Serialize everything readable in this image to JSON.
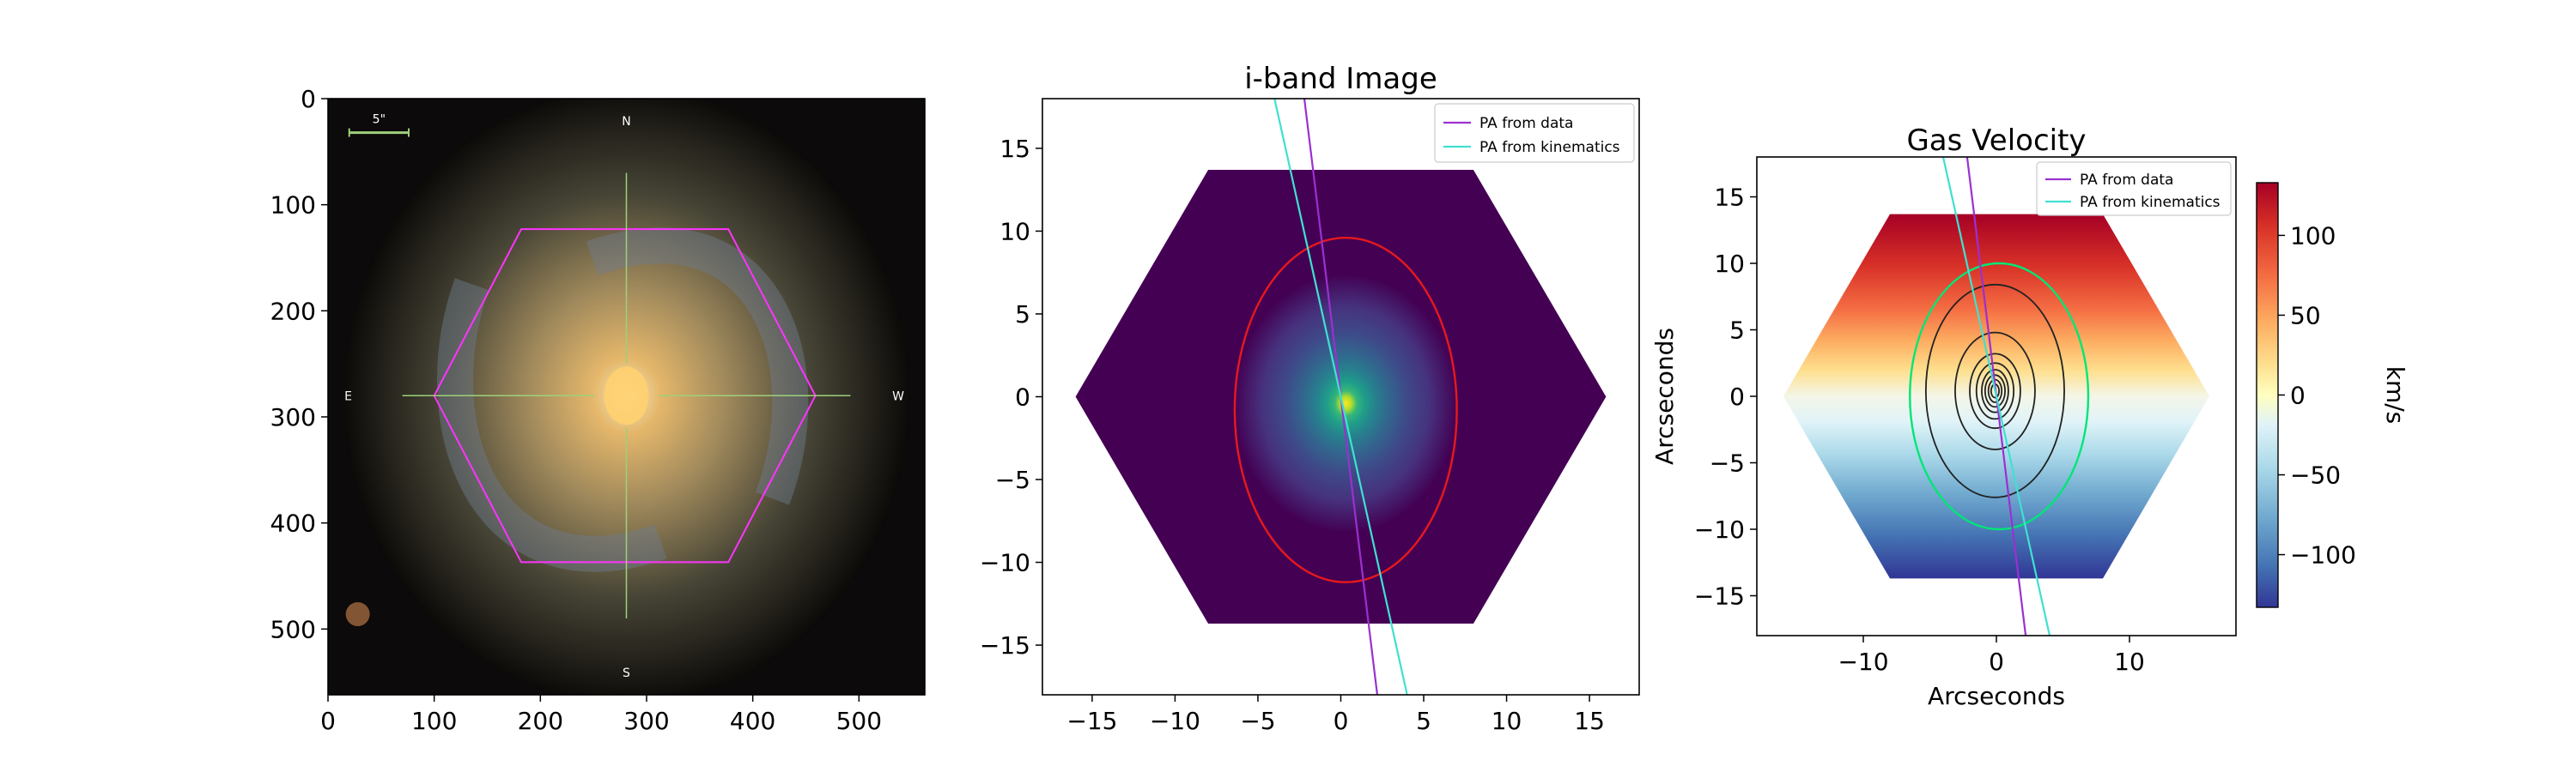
{
  "colors": {
    "hexagon": "#ff33ff",
    "crosshair": "#9ed07a",
    "pa_data": "#9b30d0",
    "pa_kinematics": "#40e0d0",
    "ellipse_iband": "#e8181c",
    "ellipse_gas": "#00e676",
    "contour": "#222222",
    "scalebar": "#9ed07a"
  },
  "chart_data": [
    {
      "type": "image",
      "panel": "SDSS color image",
      "x_ticks": [
        0,
        100,
        200,
        300,
        400,
        500
      ],
      "y_ticks": [
        0,
        100,
        200,
        300,
        400,
        500
      ],
      "xlim": [
        0,
        562
      ],
      "ylim": [
        562,
        0
      ],
      "compass": {
        "north": "N",
        "south": "S",
        "east": "E",
        "west": "W"
      },
      "scalebar_label": "5\"",
      "hexagon_vertices": [
        [
          182,
          123
        ],
        [
          377,
          123
        ],
        [
          459,
          280
        ],
        [
          377,
          437
        ],
        [
          182,
          437
        ],
        [
          100,
          280
        ]
      ],
      "center": [
        281,
        280
      ],
      "crosshair": {
        "x_range": [
          70,
          492
        ],
        "y_range": [
          70,
          490
        ],
        "gap": 30
      }
    },
    {
      "type": "heatmap",
      "title": "i-band Image",
      "colormap": "viridis",
      "x_ticks": [
        -15,
        -10,
        -5,
        0,
        5,
        10,
        15
      ],
      "y_ticks": [
        -15,
        -10,
        -5,
        0,
        5,
        10,
        15
      ],
      "xlim": [
        -18,
        18
      ],
      "ylim": [
        18,
        -18
      ],
      "footprint_hexagon": [
        [
          -8,
          -13.7
        ],
        [
          8,
          -13.7
        ],
        [
          16,
          0
        ],
        [
          8,
          13.7
        ],
        [
          -8,
          13.7
        ],
        [
          -16,
          0
        ]
      ],
      "peak": [
        0.3,
        -0.4
      ],
      "ellipse": {
        "center": [
          0.3,
          -0.8
        ],
        "semi_major": 10.4,
        "semi_minor": 6.7,
        "angle_deg": 0
      },
      "pa_lines": [
        {
          "name": "PA from data",
          "x_at_top": -2.2,
          "x_at_bottom": 2.2
        },
        {
          "name": "PA from kinematics",
          "x_at_top": -4.0,
          "x_at_bottom": 4.0
        }
      ],
      "legend": [
        "PA from data",
        "PA from kinematics"
      ],
      "legend_position": "top-right"
    },
    {
      "type": "heatmap",
      "title": "Gas Velocity",
      "xlabel": "Arcseconds",
      "ylabel": "Arcseconds",
      "colormap": "RdYlBu_r",
      "x_ticks": [
        -10,
        0,
        10
      ],
      "y_ticks": [
        15,
        10,
        5,
        0,
        -5,
        -10,
        -15
      ],
      "xlim": [
        -18,
        18
      ],
      "ylim": [
        -18,
        18
      ],
      "velocity_range": [
        -133,
        133
      ],
      "velocity_field": "red (+) at north, blue (-) at south",
      "footprint_hexagon": [
        [
          -8,
          13.7
        ],
        [
          8,
          13.7
        ],
        [
          16,
          0
        ],
        [
          8,
          -13.7
        ],
        [
          -8,
          -13.7
        ],
        [
          -16,
          0
        ]
      ],
      "ellipse": {
        "center": [
          0.2,
          0.0
        ],
        "semi_major": 10.0,
        "semi_minor": 6.7,
        "angle_deg": 0
      },
      "contours": [
        {
          "rx": 5.2,
          "ry": 8.0
        },
        {
          "rx": 3.0,
          "ry": 4.4
        },
        {
          "rx": 1.9,
          "ry": 2.8
        },
        {
          "rx": 1.4,
          "ry": 2.1
        },
        {
          "rx": 1.0,
          "ry": 1.6
        },
        {
          "rx": 0.75,
          "ry": 1.2
        },
        {
          "rx": 0.5,
          "ry": 0.85
        },
        {
          "rx": 0.3,
          "ry": 0.5
        }
      ],
      "pa_lines": [
        {
          "name": "PA from data",
          "x_at_top": -2.2,
          "x_at_bottom": 2.2
        },
        {
          "name": "PA from kinematics",
          "x_at_top": -4.0,
          "x_at_bottom": 4.0
        }
      ],
      "legend": [
        "PA from data",
        "PA from kinematics"
      ],
      "legend_position": "top-right",
      "colorbar": {
        "label": "km/s",
        "ticks": [
          100,
          50,
          0,
          -50,
          -100
        ],
        "range": [
          -133,
          133
        ]
      }
    }
  ]
}
